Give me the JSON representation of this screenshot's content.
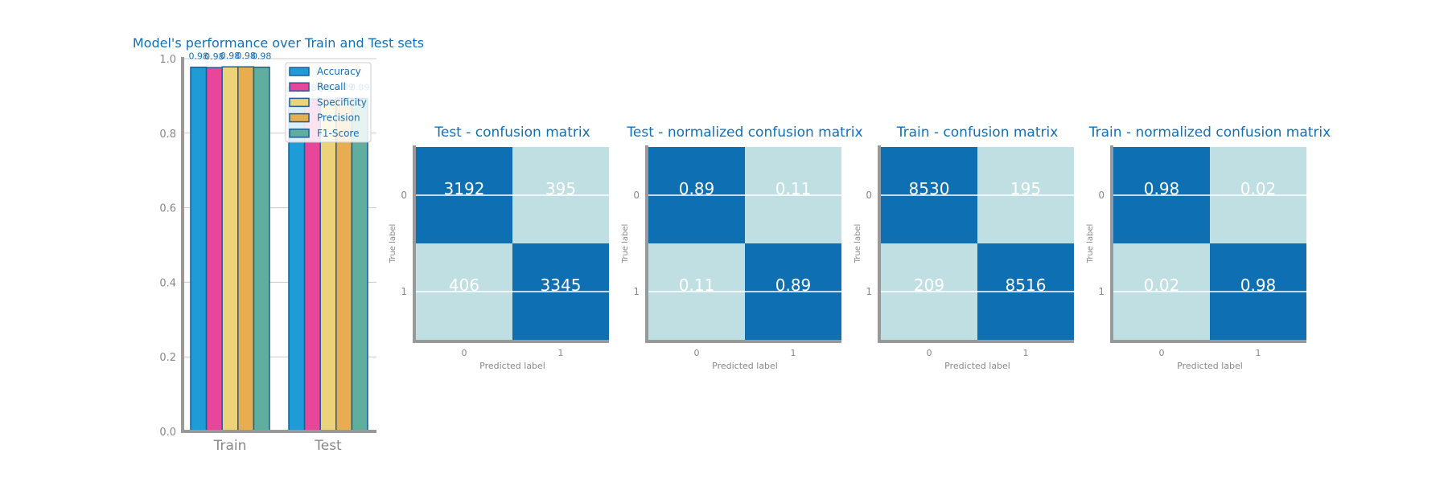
{
  "chart_data": [
    {
      "type": "bar",
      "title": "Model's performance over Train and Test sets",
      "categories": [
        "Train",
        "Test"
      ],
      "ylim": [
        0,
        1.0
      ],
      "yticks": [
        "0.0",
        "0.2",
        "0.4",
        "0.6",
        "0.8",
        "1.0"
      ],
      "grid": "y",
      "legend_position": "top-right",
      "series": [
        {
          "name": "Accuracy",
          "values": [
            0.977,
            0.888
          ],
          "labels": [
            "0.98",
            "0.89"
          ],
          "color": "#1f9bd7"
        },
        {
          "name": "Recall",
          "values": [
            0.976,
            0.892
          ],
          "labels": [
            "0.98",
            "0.89"
          ],
          "color": "#e8469b"
        },
        {
          "name": "Specificity",
          "values": [
            0.978,
            0.89
          ],
          "labels": [
            "0.98",
            "0.89"
          ],
          "color": "#ecd37a"
        },
        {
          "name": "Precision",
          "values": [
            0.978,
            0.894
          ],
          "labels": [
            "0.98",
            "0.89"
          ],
          "color": "#e8ad4f"
        },
        {
          "name": "F1-Score",
          "values": [
            0.977,
            0.893
          ],
          "labels": [
            "0.98",
            "0.89"
          ],
          "color": "#5fae9e"
        }
      ]
    },
    {
      "type": "heatmap",
      "title": "Test - confusion matrix",
      "xlabel": "Predicted label",
      "ylabel": "True label",
      "x": [
        "0",
        "1"
      ],
      "y": [
        "0",
        "1"
      ],
      "values": [
        [
          3192,
          395
        ],
        [
          406,
          3345
        ]
      ],
      "cell_labels": [
        [
          "3192",
          "395"
        ],
        [
          "406",
          "3345"
        ]
      ]
    },
    {
      "type": "heatmap",
      "title": "Test - normalized confusion matrix",
      "xlabel": "Predicted label",
      "ylabel": "True label",
      "x": [
        "0",
        "1"
      ],
      "y": [
        "0",
        "1"
      ],
      "values": [
        [
          0.89,
          0.11
        ],
        [
          0.11,
          0.89
        ]
      ],
      "cell_labels": [
        [
          "0.89",
          "0.11"
        ],
        [
          "0.11",
          "0.89"
        ]
      ]
    },
    {
      "type": "heatmap",
      "title": "Train - confusion matrix",
      "xlabel": "Predicted label",
      "ylabel": "True label",
      "x": [
        "0",
        "1"
      ],
      "y": [
        "0",
        "1"
      ],
      "values": [
        [
          8530,
          195
        ],
        [
          209,
          8516
        ]
      ],
      "cell_labels": [
        [
          "8530",
          "195"
        ],
        [
          "209",
          "8516"
        ]
      ]
    },
    {
      "type": "heatmap",
      "title": "Train - normalized confusion matrix",
      "xlabel": "Predicted label",
      "ylabel": "True label",
      "x": [
        "0",
        "1"
      ],
      "y": [
        "0",
        "1"
      ],
      "values": [
        [
          0.98,
          0.02
        ],
        [
          0.02,
          0.98
        ]
      ],
      "cell_labels": [
        [
          "0.98",
          "0.02"
        ],
        [
          "0.02",
          "0.98"
        ]
      ]
    }
  ],
  "colors": {
    "title": "#1470b4",
    "axis": "#999999",
    "tick_text": "#888888",
    "grid": "#cccccc",
    "bar_edge": "#1a5f9a",
    "cell_high": "#0f6fb3",
    "cell_low": "#c0dfe3",
    "cell_text": "#ffffff"
  }
}
